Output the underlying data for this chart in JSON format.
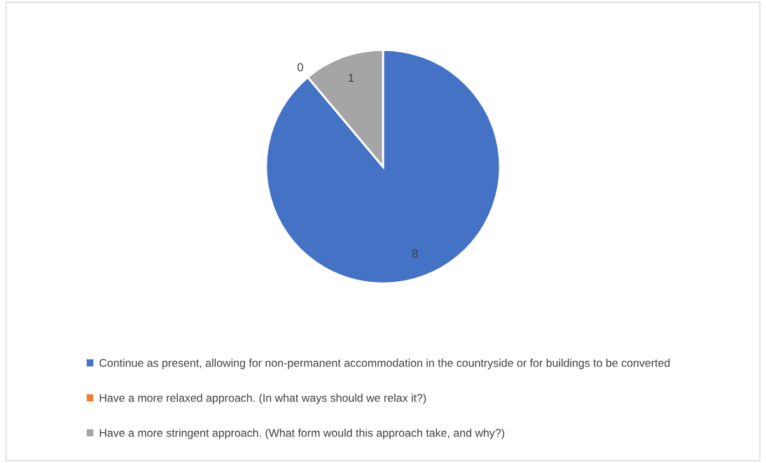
{
  "chart_data": {
    "type": "pie",
    "categories": [
      "Continue as present, allowing for non-permanent accommodation in the countryside or for buildings to be converted",
      "Have a more relaxed approach. (In what ways should we relax it?)",
      "Have a more stringent approach. (What form would this approach take, and why?)"
    ],
    "values": [
      8,
      0,
      1
    ],
    "colors": [
      "#4472c4",
      "#ed7d31",
      "#a5a5a5"
    ],
    "value_labels": [
      "8",
      "0",
      "1"
    ],
    "legend": "bottom"
  }
}
